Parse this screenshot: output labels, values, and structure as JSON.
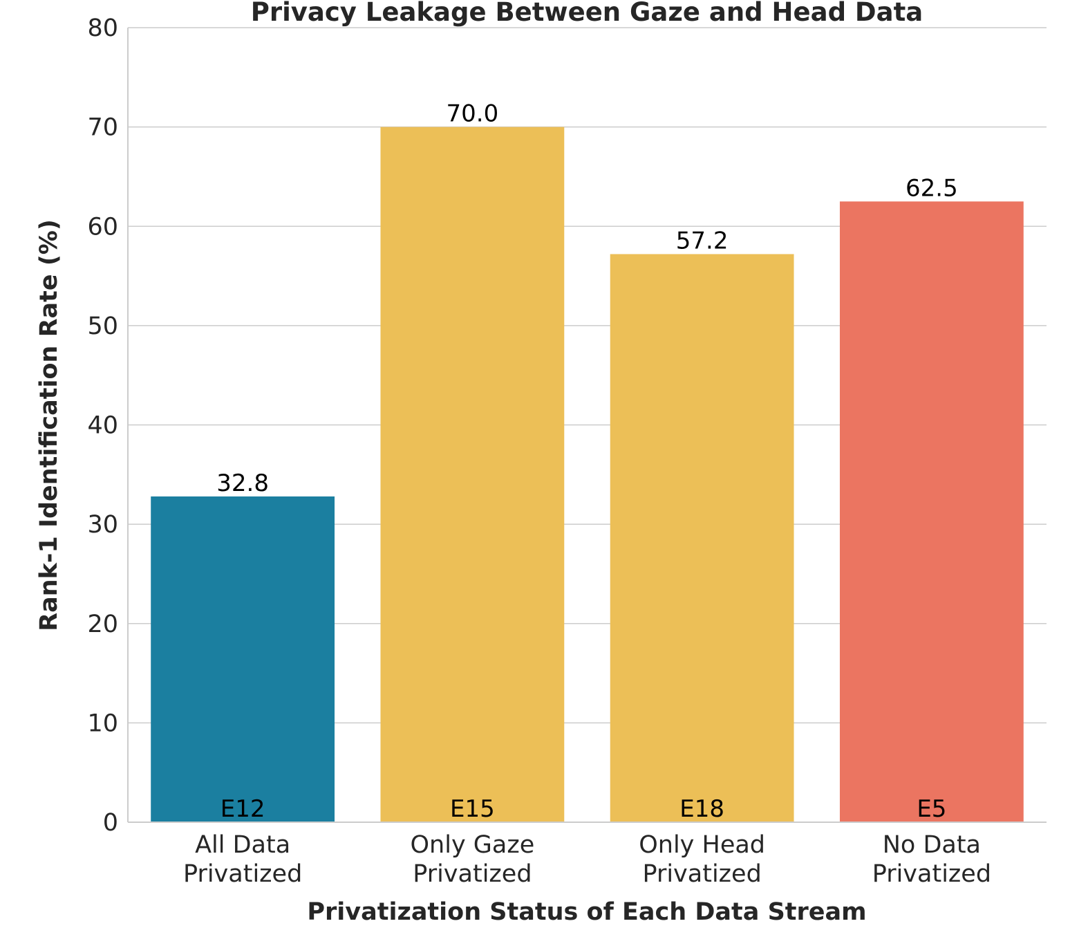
{
  "chart_data": {
    "type": "bar",
    "title": "Privacy Leakage Between Gaze and Head Data",
    "xlabel": "Privatization Status of Each Data Stream",
    "ylabel": "Rank-1 Identification Rate (%)",
    "ylim": [
      0,
      80
    ],
    "yticks": [
      "0",
      "10",
      "20",
      "30",
      "40",
      "50",
      "60",
      "70",
      "80"
    ],
    "grid": "horizontal",
    "categories": [
      [
        "All Data",
        "Privatized"
      ],
      [
        "Only Gaze",
        "Privatized"
      ],
      [
        "Only Head",
        "Privatized"
      ],
      [
        "No Data",
        "Privatized"
      ]
    ],
    "values": [
      32.8,
      70.0,
      57.2,
      62.5
    ],
    "value_labels": [
      "32.8",
      "70.0",
      "57.2",
      "62.5"
    ],
    "bar_codes": [
      "E12",
      "E15",
      "E18",
      "E5"
    ],
    "bar_colors": [
      "#1b7fa0",
      "#ecbf57",
      "#ecbf57",
      "#eb7561"
    ]
  }
}
